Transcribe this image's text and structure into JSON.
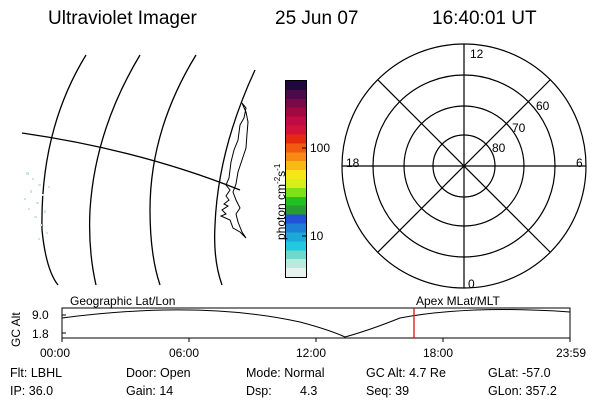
{
  "header": {
    "instrument": "Ultraviolet Imager",
    "date": "25 Jun 07",
    "time": "16:40:01 UT"
  },
  "colorbar": {
    "unit_text": "photon cm",
    "unit_exp1": "-2",
    "unit_mid": "s",
    "unit_exp2": "-1",
    "ticks": [
      "100",
      "10"
    ],
    "colors": [
      "#e6f3ee",
      "#bde8dd",
      "#6fd8cd",
      "#22c8e0",
      "#1aa9d8",
      "#1e7fd6",
      "#2250d8",
      "#2a9a33",
      "#1fc21f",
      "#7fe01e",
      "#d7ee1a",
      "#f5e617",
      "#f8b915",
      "#f78a13",
      "#f15a11",
      "#e52a12",
      "#d3123a",
      "#c00c44",
      "#a0083f",
      "#7a0a47",
      "#4b0b4a",
      "#20073c"
    ]
  },
  "polar_plot": {
    "mlt_labels": {
      "top": "12",
      "right": "6",
      "bottom": "0",
      "left": "18"
    },
    "lat_labels": [
      "60",
      "70",
      "80"
    ]
  },
  "timeline": {
    "left_label": "Geographic Lat/Lon",
    "right_label": "Apex MLat/MLT",
    "ylabel": "GC Alt",
    "y_ticks": [
      "9.0",
      "1.8"
    ],
    "x_ticks": [
      "00:00",
      "06:00",
      "12:00",
      "18:00",
      "23:59"
    ],
    "accent_color": "#e01010"
  },
  "status": {
    "flt": "Flt: LBHL",
    "door": "Door: Open",
    "mode": "Mode: Normal",
    "gc_alt": "GC Alt: 4.7 Re",
    "glat": "GLat: -57.0",
    "ip": "IP: 36.0",
    "gain": "Gain: 14",
    "dsp_label": "Dsp:",
    "dsp_value": "4.3",
    "seq": "Seq: 39",
    "glon": "GLon: 357.2"
  }
}
